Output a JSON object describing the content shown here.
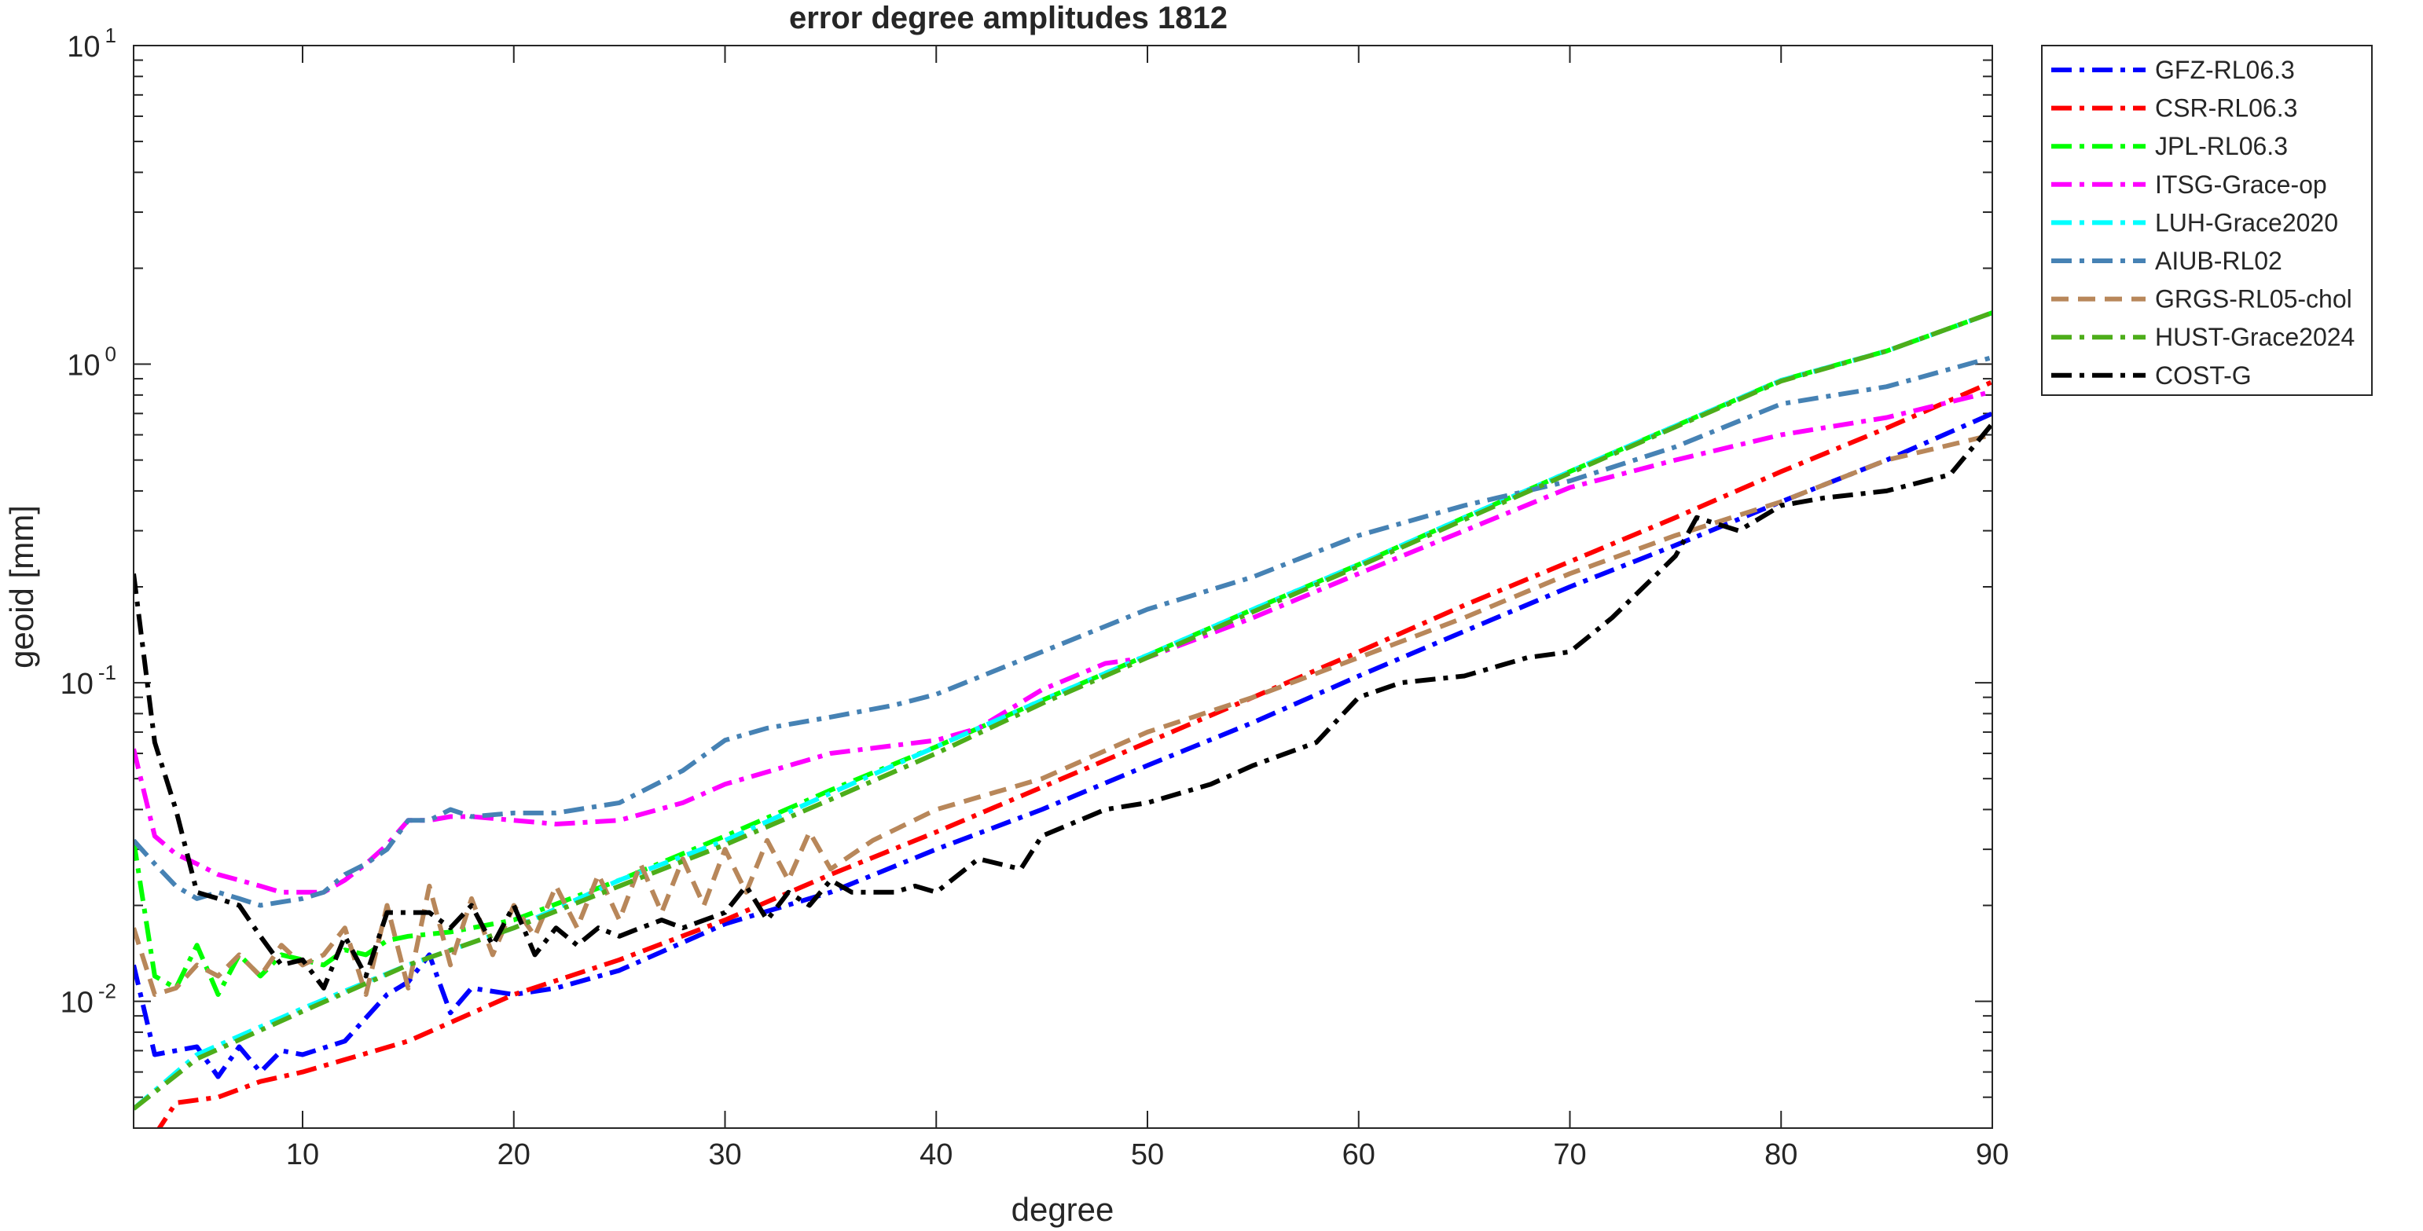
{
  "chart_data": {
    "type": "line",
    "title": "error degree amplitudes 1812",
    "xlabel": "degree",
    "ylabel": "geoid [mm]",
    "xlim": [
      2,
      90
    ],
    "ylim": [
      0.004,
      10
    ],
    "yscale": "log",
    "grid": false,
    "legend_position": "outside-right-top",
    "xticks": [
      {
        "value": 10,
        "label": "10"
      },
      {
        "value": 20,
        "label": "20"
      },
      {
        "value": 30,
        "label": "30"
      },
      {
        "value": 40,
        "label": "40"
      },
      {
        "value": 50,
        "label": "50"
      },
      {
        "value": 60,
        "label": "60"
      },
      {
        "value": 70,
        "label": "70"
      },
      {
        "value": 80,
        "label": "80"
      },
      {
        "value": 90,
        "label": "90"
      }
    ],
    "yticks": [
      {
        "value": 0.01,
        "base": "10",
        "exp": "-2"
      },
      {
        "value": 0.1,
        "base": "10",
        "exp": "-1"
      },
      {
        "value": 1,
        "base": "10",
        "exp": "0"
      },
      {
        "value": 10,
        "base": "10",
        "exp": "1"
      }
    ],
    "series": [
      {
        "name": "GFZ-RL06.3",
        "color": "#0000ff",
        "dash": "dashdot",
        "x": [
          2,
          3,
          4,
          5,
          6,
          7,
          8,
          9,
          10,
          12,
          14,
          15,
          16,
          17,
          18,
          20,
          22,
          25,
          30,
          35,
          40,
          45,
          50,
          55,
          60,
          65,
          70,
          75,
          80,
          85,
          90
        ],
        "y": [
          0.013,
          0.0068,
          0.007,
          0.0072,
          0.0058,
          0.0072,
          0.006,
          0.007,
          0.0068,
          0.0075,
          0.0105,
          0.0115,
          0.014,
          0.0092,
          0.011,
          0.0105,
          0.011,
          0.0125,
          0.0175,
          0.022,
          0.03,
          0.04,
          0.055,
          0.075,
          0.105,
          0.145,
          0.2,
          0.27,
          0.37,
          0.5,
          0.7
        ]
      },
      {
        "name": "CSR-RL06.3",
        "color": "#ff0000",
        "dash": "dashdot",
        "x": [
          3,
          4,
          6,
          8,
          10,
          15,
          20,
          25,
          30,
          35,
          40,
          45,
          50,
          55,
          60,
          65,
          70,
          75,
          80,
          85,
          90
        ],
        "y": [
          0.0038,
          0.0048,
          0.005,
          0.0056,
          0.006,
          0.0075,
          0.0105,
          0.0135,
          0.018,
          0.025,
          0.034,
          0.047,
          0.065,
          0.09,
          0.125,
          0.175,
          0.24,
          0.33,
          0.46,
          0.63,
          0.88
        ]
      },
      {
        "name": "JPL-RL06.3",
        "color": "#00ff00",
        "dash": "dashdot",
        "x": [
          2,
          3,
          4,
          5,
          6,
          7,
          8,
          9,
          10,
          11,
          12,
          13,
          14,
          15,
          17,
          20,
          25,
          30,
          35,
          40,
          45,
          50,
          55,
          60,
          65,
          70,
          75,
          80,
          85,
          90
        ],
        "y": [
          0.032,
          0.012,
          0.011,
          0.015,
          0.0105,
          0.014,
          0.012,
          0.014,
          0.0135,
          0.013,
          0.0145,
          0.014,
          0.0155,
          0.016,
          0.0165,
          0.018,
          0.024,
          0.033,
          0.046,
          0.063,
          0.088,
          0.122,
          0.17,
          0.235,
          0.33,
          0.46,
          0.64,
          0.89,
          1.1,
          1.45
        ]
      },
      {
        "name": "ITSG-Grace-op",
        "color": "#ff00ff",
        "dash": "dashdot",
        "x": [
          2,
          3,
          4,
          5,
          6,
          7,
          8,
          9,
          10,
          11,
          12,
          13,
          14,
          15,
          16,
          17,
          18,
          20,
          22,
          25,
          28,
          30,
          35,
          40,
          42,
          45,
          48,
          50,
          55,
          60,
          65,
          70,
          75,
          80,
          85,
          90
        ],
        "y": [
          0.062,
          0.033,
          0.029,
          0.027,
          0.025,
          0.024,
          0.023,
          0.022,
          0.022,
          0.022,
          0.024,
          0.027,
          0.031,
          0.037,
          0.037,
          0.038,
          0.038,
          0.037,
          0.036,
          0.037,
          0.042,
          0.048,
          0.06,
          0.066,
          0.072,
          0.095,
          0.115,
          0.12,
          0.16,
          0.22,
          0.3,
          0.41,
          0.5,
          0.6,
          0.68,
          0.82
        ]
      },
      {
        "name": "LUH-Grace2020",
        "color": "#00ffff",
        "dash": "dashdot",
        "x": [
          2,
          5,
          10,
          15,
          20,
          25,
          30,
          35,
          40,
          45,
          50,
          55,
          60,
          65,
          70,
          75,
          80,
          85,
          90
        ],
        "y": [
          0.0046,
          0.0068,
          0.0095,
          0.013,
          0.017,
          0.024,
          0.032,
          0.045,
          0.063,
          0.088,
          0.122,
          0.17,
          0.235,
          0.33,
          0.46,
          0.64,
          0.89,
          1.1,
          1.45
        ]
      },
      {
        "name": "AIUB-RL02",
        "color": "#4682b4",
        "dash": "dashdot",
        "x": [
          2,
          3,
          4,
          5,
          6,
          7,
          8,
          9,
          10,
          11,
          12,
          13,
          14,
          15,
          16,
          17,
          18,
          20,
          22,
          25,
          28,
          30,
          32,
          35,
          38,
          40,
          45,
          50,
          55,
          60,
          65,
          70,
          75,
          80,
          85,
          90
        ],
        "y": [
          0.032,
          0.027,
          0.023,
          0.021,
          0.022,
          0.021,
          0.02,
          0.0205,
          0.021,
          0.022,
          0.025,
          0.027,
          0.03,
          0.037,
          0.037,
          0.04,
          0.038,
          0.039,
          0.039,
          0.042,
          0.053,
          0.066,
          0.072,
          0.078,
          0.085,
          0.092,
          0.125,
          0.17,
          0.215,
          0.29,
          0.36,
          0.43,
          0.55,
          0.75,
          0.85,
          1.05
        ]
      },
      {
        "name": "GRGS-RL05-chol",
        "color": "#b8875a",
        "dash": "dashed",
        "x": [
          2,
          3,
          4,
          5,
          6,
          7,
          8,
          9,
          10,
          11,
          12,
          13,
          14,
          15,
          16,
          17,
          18,
          19,
          20,
          21,
          22,
          23,
          24,
          25,
          26,
          27,
          28,
          29,
          30,
          31,
          32,
          33,
          34,
          35,
          37,
          40,
          45,
          50,
          55,
          60,
          65,
          70,
          75,
          80,
          85,
          90
        ],
        "y": [
          0.017,
          0.0105,
          0.011,
          0.013,
          0.012,
          0.014,
          0.012,
          0.015,
          0.013,
          0.014,
          0.017,
          0.0105,
          0.02,
          0.011,
          0.023,
          0.013,
          0.021,
          0.014,
          0.02,
          0.016,
          0.023,
          0.017,
          0.025,
          0.018,
          0.027,
          0.019,
          0.028,
          0.02,
          0.03,
          0.022,
          0.032,
          0.024,
          0.034,
          0.026,
          0.032,
          0.04,
          0.05,
          0.07,
          0.09,
          0.12,
          0.16,
          0.22,
          0.29,
          0.37,
          0.5,
          0.6
        ]
      },
      {
        "name": "HUST-Grace2024",
        "color": "#4dad1a",
        "dash": "dashdot",
        "x": [
          2,
          5,
          10,
          15,
          20,
          25,
          30,
          35,
          40,
          45,
          50,
          55,
          60,
          65,
          70,
          75,
          80,
          85,
          90
        ],
        "y": [
          0.0046,
          0.0066,
          0.0093,
          0.013,
          0.017,
          0.023,
          0.031,
          0.043,
          0.06,
          0.086,
          0.12,
          0.167,
          0.232,
          0.325,
          0.455,
          0.635,
          0.885,
          1.1,
          1.45
        ]
      },
      {
        "name": "COST-G",
        "color": "#000000",
        "dash": "dashdot",
        "x": [
          2,
          3,
          4,
          5,
          6,
          7,
          8,
          9,
          10,
          11,
          12,
          13,
          14,
          15,
          16,
          17,
          18,
          19,
          20,
          21,
          22,
          23,
          24,
          25,
          26,
          27,
          28,
          30,
          31,
          32,
          33,
          34,
          35,
          36,
          37,
          38,
          39,
          40,
          42,
          44,
          45,
          48,
          50,
          53,
          55,
          58,
          60,
          62,
          65,
          68,
          70,
          72,
          75,
          76,
          78,
          80,
          82,
          85,
          88,
          90
        ],
        "y": [
          0.22,
          0.065,
          0.04,
          0.022,
          0.021,
          0.02,
          0.016,
          0.013,
          0.0135,
          0.011,
          0.016,
          0.012,
          0.019,
          0.019,
          0.019,
          0.017,
          0.02,
          0.015,
          0.02,
          0.014,
          0.017,
          0.015,
          0.017,
          0.016,
          0.017,
          0.018,
          0.017,
          0.019,
          0.023,
          0.018,
          0.022,
          0.02,
          0.024,
          0.022,
          0.022,
          0.022,
          0.023,
          0.022,
          0.028,
          0.026,
          0.033,
          0.04,
          0.042,
          0.048,
          0.055,
          0.065,
          0.09,
          0.1,
          0.105,
          0.12,
          0.125,
          0.16,
          0.25,
          0.33,
          0.3,
          0.36,
          0.38,
          0.4,
          0.45,
          0.65
        ]
      }
    ]
  }
}
